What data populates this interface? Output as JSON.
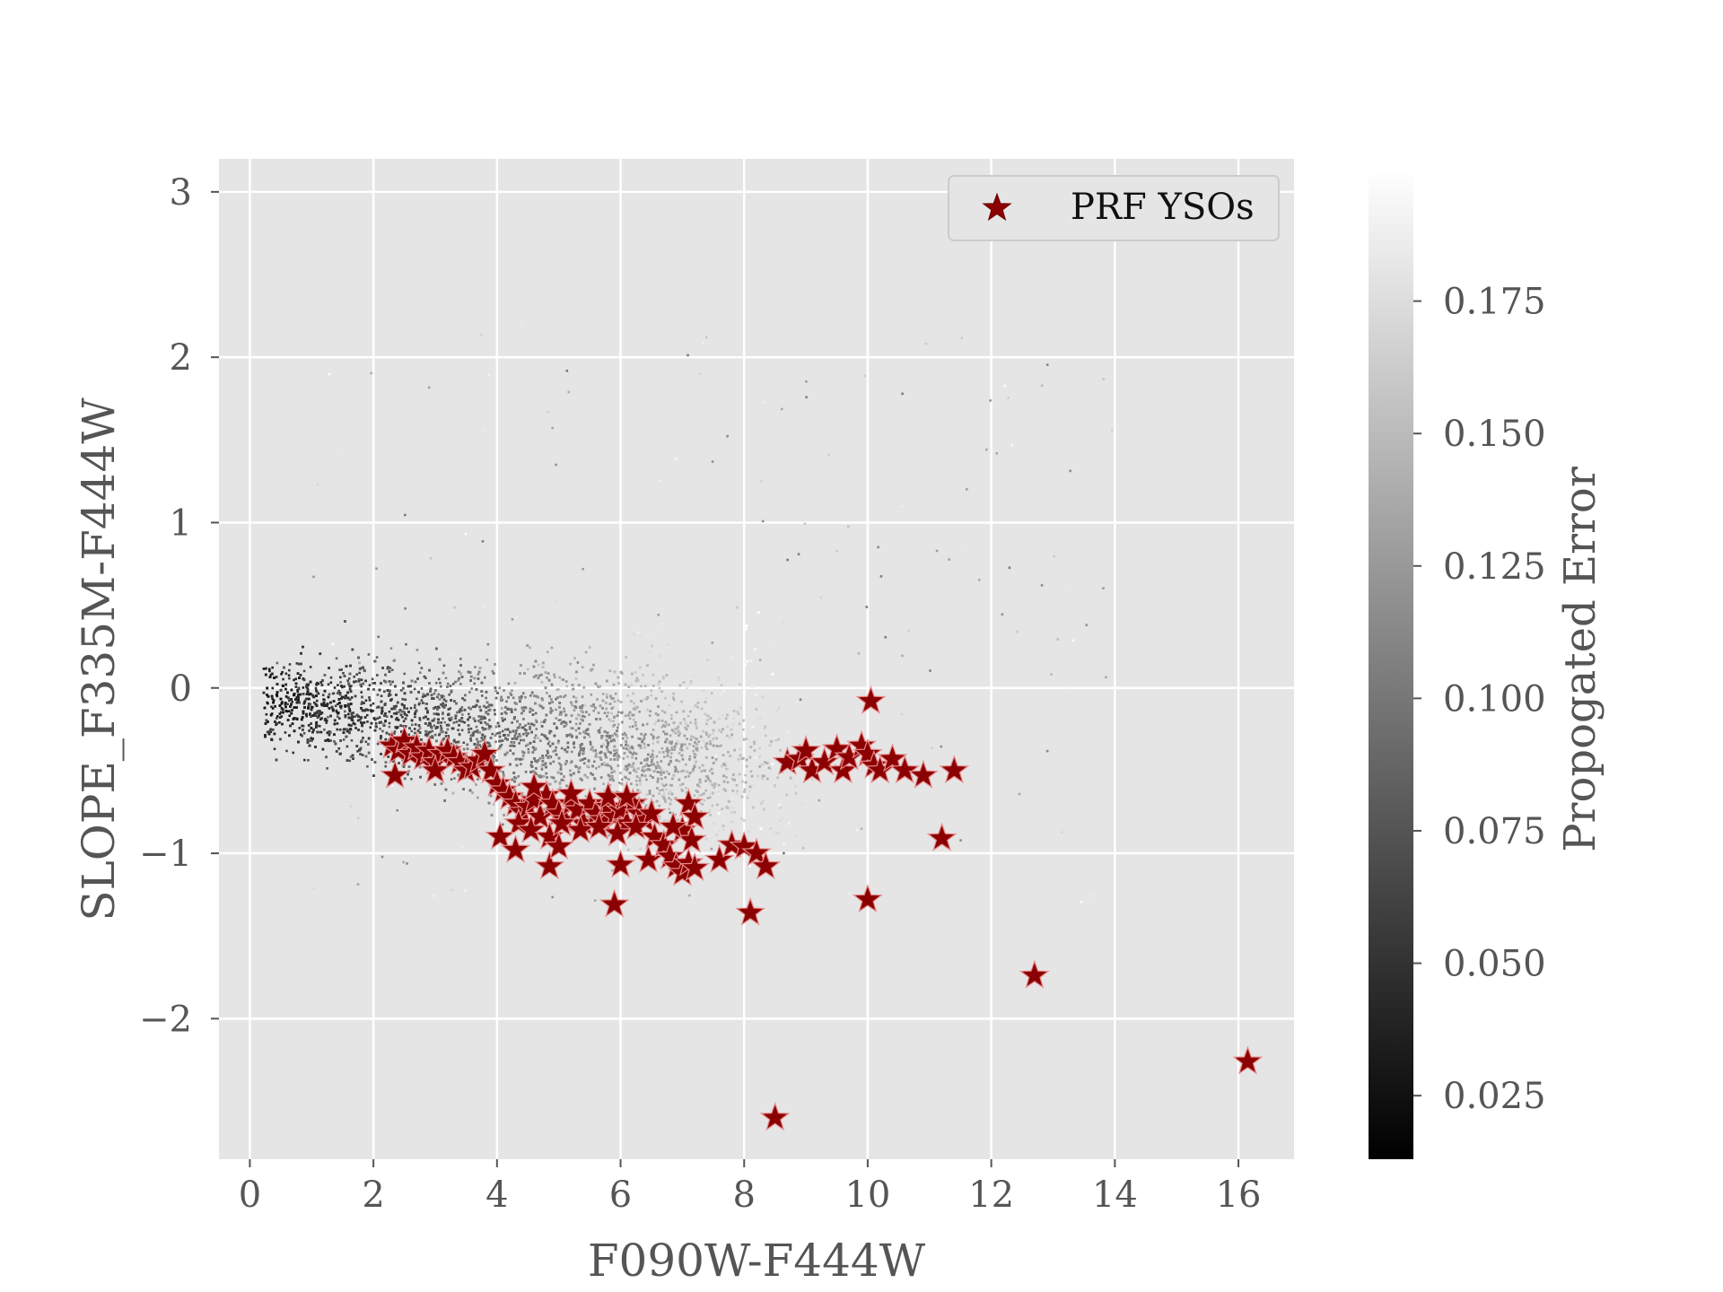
{
  "chart_data": {
    "type": "scatter",
    "xlabel": "F090W-F444W",
    "ylabel": "SLOPE_F335M-F444W",
    "xlim": [
      -0.5,
      16.9
    ],
    "ylim": [
      -2.85,
      3.2
    ],
    "xticks": [
      0,
      2,
      4,
      6,
      8,
      10,
      12,
      14,
      16
    ],
    "yticks": [
      -2,
      -1,
      0,
      1,
      2,
      3
    ],
    "grid": true,
    "background": "#e5e5e5",
    "legend": {
      "position": "top-right",
      "entries": [
        "PRF YSOs"
      ]
    },
    "colorbar": {
      "label": "Propogated Error",
      "range": [
        0.013,
        0.2
      ],
      "ticks": [
        0.025,
        0.05,
        0.075,
        0.1,
        0.125,
        0.15,
        0.175
      ],
      "tick_labels": [
        "0.025",
        "0.050",
        "0.075",
        "0.100",
        "0.125",
        "0.150",
        "0.175"
      ],
      "colormap": "gray"
    },
    "series": [
      {
        "name": "",
        "kind": "field-sources",
        "color_by": "Propogated Error",
        "n_points_approx": 9000,
        "density_centers": [
          {
            "x": 1.2,
            "y": -0.1,
            "err": 0.02
          },
          {
            "x": 3.5,
            "y": -0.2,
            "err": 0.05
          },
          {
            "x": 5.5,
            "y": -0.3,
            "err": 0.09
          },
          {
            "x": 7.0,
            "y": -0.35,
            "err": 0.13
          }
        ]
      },
      {
        "name": "PRF YSOs",
        "kind": "stars",
        "color": "#8b0000",
        "points": [
          [
            2.3,
            -0.35
          ],
          [
            2.4,
            -0.38
          ],
          [
            2.5,
            -0.32
          ],
          [
            2.6,
            -0.4
          ],
          [
            2.7,
            -0.36
          ],
          [
            2.8,
            -0.42
          ],
          [
            2.9,
            -0.38
          ],
          [
            3.0,
            -0.45
          ],
          [
            3.1,
            -0.4
          ],
          [
            3.2,
            -0.38
          ],
          [
            3.3,
            -0.42
          ],
          [
            3.4,
            -0.45
          ],
          [
            3.5,
            -0.5
          ],
          [
            3.6,
            -0.48
          ],
          [
            3.7,
            -0.44
          ],
          [
            3.8,
            -0.4
          ],
          [
            3.9,
            -0.5
          ],
          [
            2.35,
            -0.53
          ],
          [
            3.0,
            -0.5
          ],
          [
            4.0,
            -0.58
          ],
          [
            4.1,
            -0.62
          ],
          [
            4.2,
            -0.66
          ],
          [
            4.3,
            -0.7
          ],
          [
            4.4,
            -0.75
          ],
          [
            4.5,
            -0.72
          ],
          [
            4.6,
            -0.68
          ],
          [
            4.7,
            -0.78
          ],
          [
            4.8,
            -0.65
          ],
          [
            4.9,
            -0.7
          ],
          [
            5.0,
            -0.76
          ],
          [
            5.1,
            -0.8
          ],
          [
            5.2,
            -0.7
          ],
          [
            5.3,
            -0.74
          ],
          [
            5.4,
            -0.82
          ],
          [
            5.5,
            -0.7
          ],
          [
            5.6,
            -0.76
          ],
          [
            5.7,
            -0.8
          ],
          [
            5.8,
            -0.72
          ],
          [
            5.9,
            -0.78
          ],
          [
            6.0,
            -0.74
          ],
          [
            6.1,
            -0.82
          ],
          [
            6.2,
            -0.7
          ],
          [
            6.3,
            -0.76
          ],
          [
            6.4,
            -0.8
          ],
          [
            6.5,
            -0.76
          ],
          [
            4.35,
            -0.82
          ],
          [
            4.55,
            -0.86
          ],
          [
            4.85,
            -0.9
          ],
          [
            5.05,
            -0.82
          ],
          [
            5.35,
            -0.86
          ],
          [
            5.65,
            -0.84
          ],
          [
            5.95,
            -0.88
          ],
          [
            6.25,
            -0.84
          ],
          [
            6.55,
            -0.9
          ],
          [
            4.6,
            -0.6
          ],
          [
            5.2,
            -0.64
          ],
          [
            5.8,
            -0.66
          ],
          [
            6.1,
            -0.66
          ],
          [
            4.05,
            -0.9
          ],
          [
            4.3,
            -0.98
          ],
          [
            4.85,
            -1.08
          ],
          [
            5.0,
            -0.96
          ],
          [
            6.0,
            -1.07
          ],
          [
            5.9,
            -1.31
          ],
          [
            6.45,
            -1.04
          ],
          [
            6.7,
            -0.95
          ],
          [
            6.8,
            -1.02
          ],
          [
            6.9,
            -1.08
          ],
          [
            7.0,
            -1.12
          ],
          [
            7.1,
            -1.06
          ],
          [
            7.2,
            -1.09
          ],
          [
            7.1,
            -0.7
          ],
          [
            7.2,
            -0.78
          ],
          [
            7.0,
            -0.86
          ],
          [
            7.15,
            -0.92
          ],
          [
            6.85,
            -0.84
          ],
          [
            7.6,
            -1.04
          ],
          [
            7.8,
            -0.95
          ],
          [
            8.0,
            -0.96
          ],
          [
            8.2,
            -1.0
          ],
          [
            8.35,
            -1.08
          ],
          [
            8.1,
            -1.36
          ],
          [
            8.5,
            -2.6
          ],
          [
            8.7,
            -0.45
          ],
          [
            8.9,
            -0.43
          ],
          [
            9.0,
            -0.38
          ],
          [
            9.1,
            -0.5
          ],
          [
            9.3,
            -0.45
          ],
          [
            9.5,
            -0.37
          ],
          [
            9.6,
            -0.5
          ],
          [
            9.7,
            -0.42
          ],
          [
            9.9,
            -0.35
          ],
          [
            10.0,
            -0.4
          ],
          [
            10.1,
            -0.47
          ],
          [
            10.2,
            -0.5
          ],
          [
            10.4,
            -0.43
          ],
          [
            10.6,
            -0.5
          ],
          [
            10.9,
            -0.53
          ],
          [
            11.4,
            -0.5
          ],
          [
            10.05,
            -0.08
          ],
          [
            10.0,
            -1.28
          ],
          [
            11.2,
            -0.91
          ],
          [
            12.7,
            -1.74
          ],
          [
            16.15,
            -2.26
          ]
        ]
      }
    ]
  }
}
